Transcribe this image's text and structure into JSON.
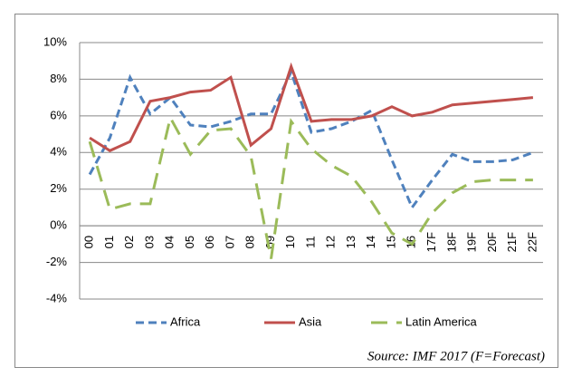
{
  "chart_data": {
    "type": "line",
    "categories": [
      "00",
      "01",
      "02",
      "03",
      "04",
      "05",
      "06",
      "07",
      "08",
      "09",
      "10",
      "11",
      "12",
      "13",
      "14",
      "15",
      "16",
      "17F",
      "18F",
      "19F",
      "20F",
      "21F",
      "22F"
    ],
    "series": [
      {
        "name": "Africa",
        "color": "#4f81bd",
        "dash": "dashed",
        "values": [
          2.8,
          4.8,
          8.1,
          6.1,
          7.0,
          5.5,
          5.4,
          5.7,
          6.1,
          6.1,
          8.4,
          5.1,
          5.3,
          5.7,
          6.3,
          3.6,
          1.0,
          2.5,
          3.9,
          3.5,
          3.5,
          3.6,
          4.0
        ]
      },
      {
        "name": "Asia",
        "color": "#c0504d",
        "dash": "solid",
        "values": [
          4.8,
          4.1,
          4.6,
          6.8,
          7.0,
          7.3,
          7.4,
          8.1,
          4.4,
          5.3,
          8.7,
          5.7,
          5.8,
          5.8,
          6.0,
          6.5,
          6.0,
          6.2,
          6.6,
          6.7,
          6.8,
          6.9,
          7.0
        ]
      },
      {
        "name": "Latin America",
        "color": "#9bbb59",
        "dash": "long-dash",
        "values": [
          4.6,
          0.9,
          1.2,
          1.2,
          5.9,
          3.9,
          5.2,
          5.3,
          3.8,
          -1.8,
          5.7,
          4.2,
          3.3,
          2.7,
          1.3,
          -0.4,
          -1.0,
          0.7,
          1.8,
          2.4,
          2.5,
          2.5,
          2.5
        ]
      }
    ],
    "ylim": [
      -4,
      10
    ],
    "yticks": [
      {
        "value": -4,
        "label": "-4%"
      },
      {
        "value": -2,
        "label": "-2%"
      },
      {
        "value": 0,
        "label": "0%"
      },
      {
        "value": 2,
        "label": "2%"
      },
      {
        "value": 4,
        "label": "4%"
      },
      {
        "value": 6,
        "label": "6%"
      },
      {
        "value": 8,
        "label": "8%"
      },
      {
        "value": 10,
        "label": "10%"
      }
    ],
    "grid": true,
    "legend": "bottom",
    "annotation": "Source: IMF 2017 (F=Forecast)"
  }
}
